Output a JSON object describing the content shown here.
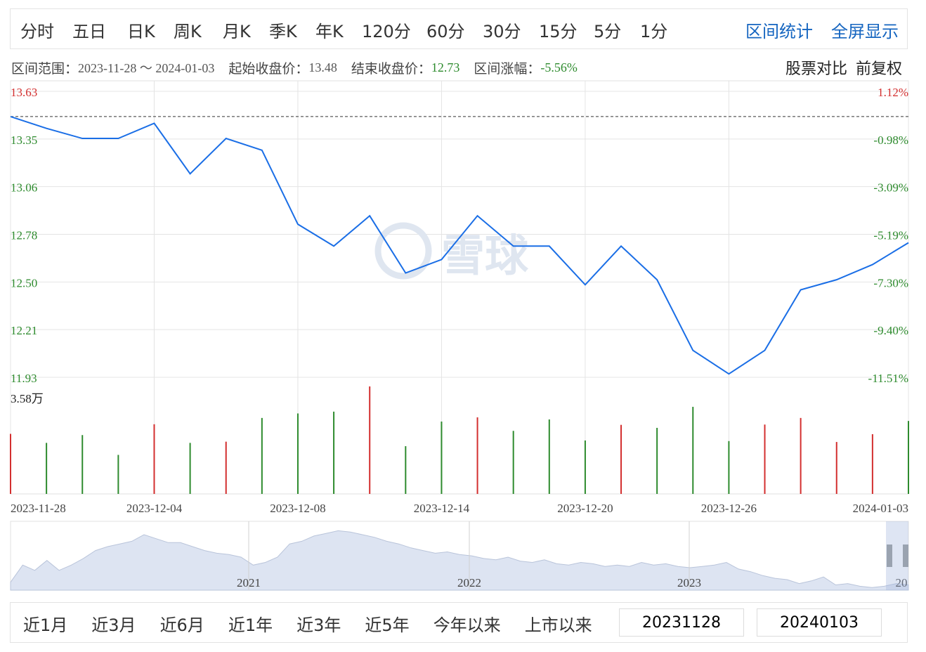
{
  "period_tabs": [
    "分时",
    "五日",
    "日K",
    "周K",
    "月K",
    "季K",
    "年K",
    "120分",
    "60分",
    "30分",
    "15分",
    "5分",
    "1分"
  ],
  "top_links": {
    "range_stats": "区间统计",
    "fullscreen": "全屏显示"
  },
  "info": {
    "range_label": "区间范围：",
    "range_value": "2023-11-28 ～ 2024-01-03",
    "start_close_label": "起始收盘价：",
    "start_close_value": "13.48",
    "end_close_label": "结束收盘价：",
    "end_close_value": "12.73",
    "change_label": "区间涨幅：",
    "change_value": "-5.56%"
  },
  "info_right": {
    "compare": "股票对比",
    "adjust": "前复权"
  },
  "watermark": "雪球",
  "colors": {
    "line": "#1a6ee6",
    "up": "#d32f2f",
    "down": "#2e8b2e",
    "accent": "#1565c0"
  },
  "chart_data": [
    {
      "type": "line",
      "x": [
        "2023-11-28",
        "2023-11-29",
        "2023-11-30",
        "2023-12-01",
        "2023-12-04",
        "2023-12-05",
        "2023-12-06",
        "2023-12-07",
        "2023-12-08",
        "2023-12-11",
        "2023-12-12",
        "2023-12-13",
        "2023-12-14",
        "2023-12-15",
        "2023-12-18",
        "2023-12-19",
        "2023-12-20",
        "2023-12-21",
        "2023-12-22",
        "2023-12-25",
        "2023-12-26",
        "2023-12-27",
        "2023-12-28",
        "2023-12-29",
        "2024-01-02",
        "2024-01-03"
      ],
      "series": [
        {
          "values": [
            13.48,
            13.41,
            13.35,
            13.35,
            13.44,
            13.14,
            13.35,
            13.28,
            12.84,
            12.71,
            12.89,
            12.55,
            12.63,
            12.89,
            12.71,
            12.71,
            12.48,
            12.71,
            12.51,
            12.09,
            11.95,
            12.09,
            12.45,
            12.51,
            12.6,
            12.73
          ]
        }
      ],
      "y_ticks": [
        "13.63",
        "13.35",
        "13.06",
        "12.78",
        "12.50",
        "12.21",
        "11.93"
      ],
      "y_right_ticks": [
        "1.12%",
        "-0.98%",
        "-3.09%",
        "-5.19%",
        "-7.30%",
        "-9.40%",
        "-11.51%"
      ],
      "x_ticks": [
        "2023-11-28",
        "2023-12-04",
        "2023-12-08",
        "2023-12-14",
        "2023-12-20",
        "2023-12-26",
        "2024-01-03"
      ],
      "ylim": [
        11.93,
        13.63
      ],
      "reference_value": 13.48,
      "grid": true
    },
    {
      "type": "bar",
      "max_label": "3.58万",
      "max_value": 35800,
      "values": [
        20000,
        17000,
        19600,
        13000,
        23200,
        17000,
        17400,
        25300,
        26800,
        27400,
        35800,
        15900,
        24100,
        25500,
        21000,
        24800,
        17800,
        23000,
        22000,
        29000,
        17600,
        23100,
        25300,
        17300,
        19900,
        24300
      ],
      "direction": [
        "up",
        "down",
        "down",
        "down",
        "up",
        "down",
        "up",
        "down",
        "down",
        "down",
        "up",
        "down",
        "down",
        "up",
        "down",
        "down",
        "down",
        "up",
        "down",
        "down",
        "down",
        "up",
        "up",
        "up",
        "up",
        "down"
      ]
    }
  ],
  "overview": {
    "year_labels": [
      "2021",
      "2022",
      "2023",
      "20"
    ]
  },
  "range_tabs": [
    "近1月",
    "近3月",
    "近6月",
    "近1年",
    "近3年",
    "近5年",
    "今年以来",
    "上市以来"
  ],
  "date_inputs": {
    "start": "20231128",
    "end": "20240103"
  }
}
